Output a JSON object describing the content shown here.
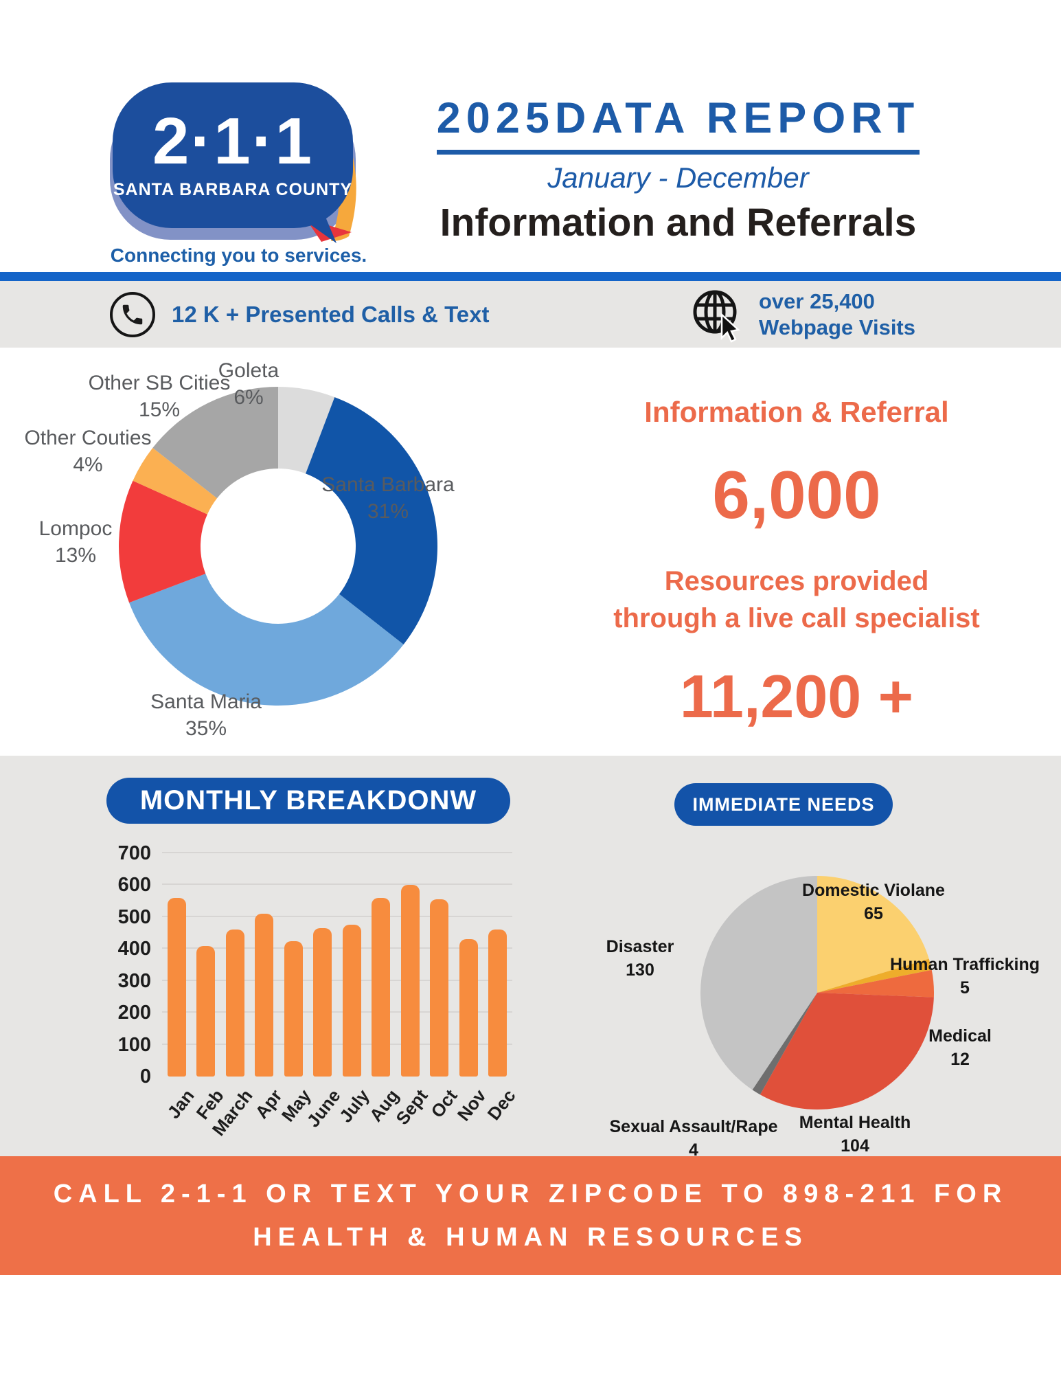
{
  "colors": {
    "primary_blue": "#1b4f9e",
    "header_blue": "#1353a9",
    "divider_blue": "#1464c8",
    "text_blue": "#1f5fa6",
    "band_gray": "#e7e6e4",
    "accent_orange": "#ec6a4a",
    "footer_orange": "#ee7048",
    "bar_orange": "#f78c3e"
  },
  "header": {
    "logo_number": "2·1·1",
    "logo_region": "SANTA BARBARA COUNTY",
    "logo_tagline": "Connecting you to services.",
    "title": "2025DATA REPORT",
    "period": "January - December",
    "subtitle": "Information and Referrals"
  },
  "stats_bar": {
    "calls_icon": "phone-icon",
    "calls_text": "12 K + Presented Calls & Text",
    "web_icon": "globe-cursor-icon",
    "web_line1": "over 25,400",
    "web_line2": "Webpage Visits"
  },
  "info_panel": {
    "heading": "Information & Referral",
    "stat1": "6,000",
    "desc_line1": "Resources provided",
    "desc_line2": "through a live call specialist",
    "stat2": "11,200 +"
  },
  "footer": {
    "line1": "CALL 2-1-1 OR TEXT YOUR ZIPCODE TO 898-211 FOR",
    "line2": "HEALTH & HUMAN RESOURCES"
  },
  "chart_data": [
    {
      "type": "donut",
      "name": "calls-by-location",
      "order": "clockwise from 12 o'clock",
      "slices": [
        {
          "label": "Goleta",
          "pct": 6,
          "pct_label": "6%",
          "color": "#dcdcdc"
        },
        {
          "label": "Santa Barbara",
          "pct": 31,
          "pct_label": "31%",
          "color": "#1155a8"
        },
        {
          "label": "Santa Maria",
          "pct": 35,
          "pct_label": "35%",
          "color": "#6fa8dc"
        },
        {
          "label": "Lompoc",
          "pct": 13,
          "pct_label": "13%",
          "color": "#f23c3c"
        },
        {
          "label": "Other Couties",
          "pct": 4,
          "pct_label": "4%",
          "color": "#fbb052"
        },
        {
          "label": "Other SB Cities",
          "pct": 15,
          "pct_label": "15%",
          "color": "#a6a6a6"
        }
      ]
    },
    {
      "type": "bar",
      "title": "MONTHLY BREAKDONW",
      "categories": [
        "Jan",
        "Feb",
        "March",
        "Apr",
        "May",
        "June",
        "July",
        "Aug",
        "Sept",
        "Oct",
        "Nov",
        "Dec"
      ],
      "values": [
        560,
        410,
        460,
        510,
        425,
        465,
        475,
        560,
        600,
        555,
        430,
        460
      ],
      "ylim": [
        0,
        700
      ],
      "yticks": [
        0,
        100,
        200,
        300,
        400,
        500,
        600,
        700
      ],
      "bar_color": "#f78c3e",
      "grid": true,
      "legend": false
    },
    {
      "type": "pie",
      "title": "IMMEDIATE NEEDS",
      "order": "clockwise from 12 o'clock",
      "slices": [
        {
          "label": "Domestic Violane",
          "value": 65,
          "color": "#fbd06f"
        },
        {
          "label": "Human Trafficking",
          "value": 5,
          "color": "#eead2b"
        },
        {
          "label": "Medical",
          "value": 12,
          "color": "#ee6a3e"
        },
        {
          "label": "Mental Health",
          "value": 104,
          "color": "#e0503a"
        },
        {
          "label": "Sexual Assault/Rape",
          "value": 4,
          "color": "#6e6e6e"
        },
        {
          "label": "Disaster",
          "value": 130,
          "color": "#c4c4c4"
        }
      ]
    }
  ]
}
